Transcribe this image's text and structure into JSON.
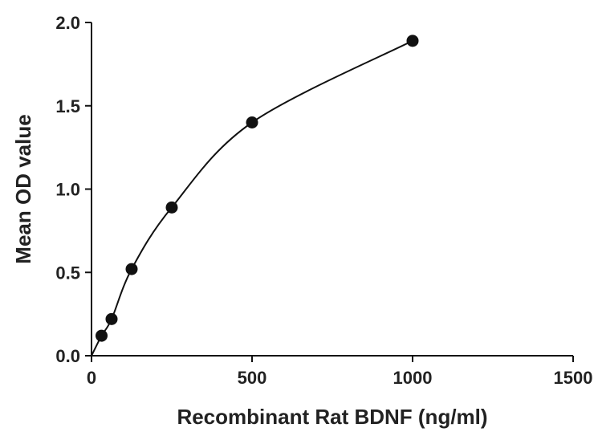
{
  "chart_data": {
    "type": "scatter",
    "title": "",
    "xlabel": "Recombinant Rat BDNF (ng/ml)",
    "ylabel": "Mean OD value",
    "xlim": [
      0,
      1500
    ],
    "ylim": [
      0,
      2.0
    ],
    "x_ticks": [
      {
        "value": 0,
        "label": "0"
      },
      {
        "value": 500,
        "label": "500"
      },
      {
        "value": 1000,
        "label": "1000"
      },
      {
        "value": 1500,
        "label": "1500"
      }
    ],
    "y_ticks": [
      {
        "value": 0,
        "label": "0.0"
      },
      {
        "value": 0.5,
        "label": "0.5"
      },
      {
        "value": 1.0,
        "label": "1.0"
      },
      {
        "value": 1.5,
        "label": "1.5"
      },
      {
        "value": 2.0,
        "label": "2.0"
      }
    ],
    "grid": false,
    "legend": "none",
    "series": [
      {
        "x": [
          31.25,
          62.5,
          125,
          250,
          500,
          1000
        ],
        "y": [
          0.12,
          0.22,
          0.52,
          0.89,
          1.4,
          1.89
        ],
        "marker": "circle",
        "color": "#111111",
        "fit_curve": true
      }
    ]
  }
}
